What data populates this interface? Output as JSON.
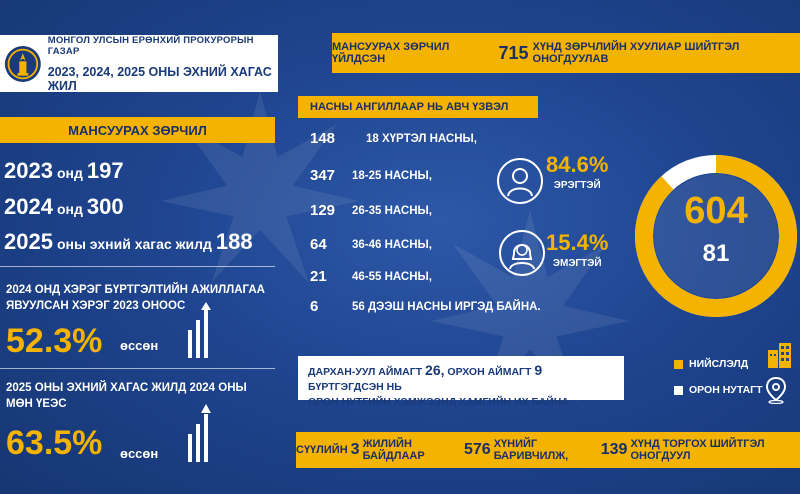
{
  "header": {
    "org": "МОНГОЛ УЛСЫН ЕРӨНХИЙ ПРОКУРОРЫН ГАЗАР",
    "period": "2023, 2024, 2025 ОНЫ ЭХНИЙ ХАГАС ЖИЛ"
  },
  "top_banner": {
    "before": "МАНСУУРАХ ЗӨРЧИЛ ҮЙЛДСЭН",
    "number": "715",
    "after": "ХҮНД ЗӨРЧЛИЙН ХУУЛИАР ШИЙТГЭЛ ОНОГДУУЛАВ"
  },
  "left": {
    "title": "МАНСУУРАХ ЗӨРЧИЛ",
    "years": [
      {
        "year": "2023",
        "mid": "онд",
        "value": "197"
      },
      {
        "year": "2024",
        "mid": "онд",
        "value": "300"
      },
      {
        "year": "2025",
        "mid": "оны эхний хагас жилд",
        "value": "188"
      }
    ],
    "stat1": {
      "line1": "2024 ОНД ХЭРЭГ БҮРТГЭЛТИЙН АЖИЛЛАГАА",
      "line2": "ЯВУУЛСАН ХЭРЭГ 2023 ОНООС",
      "pct": "52.3%",
      "word": "өссөн"
    },
    "stat2": {
      "line1": "2025 ОНЫ ЭХНИЙ ХАГАС ЖИЛД 2024 ОНЫ",
      "line2": "МӨН ҮЕЭС",
      "pct": "63.5%",
      "word": "өссөн"
    }
  },
  "ages": {
    "title": "НАСНЫ АНГИЛЛААР НЬ АВЧ ҮЗВЭЛ",
    "rows": [
      {
        "num": "148",
        "label": "18 ХҮРТЭЛ НАСНЫ,"
      },
      {
        "num": "347",
        "label": "18-25 НАСНЫ,"
      },
      {
        "num": "129",
        "label": "26-35 НАСНЫ,"
      },
      {
        "num": "64",
        "label": "36-46 НАСНЫ,"
      },
      {
        "num": "21",
        "label": "46-55 НАСНЫ,"
      },
      {
        "num": "6",
        "label": "56 ДЭЭШ НАСНЫ ИРГЭД БАЙНА."
      }
    ]
  },
  "gender": {
    "male": {
      "pct": "84.6%",
      "label": "ЭРЭГТЭЙ"
    },
    "female": {
      "pct": "15.4%",
      "label": "ЭМЭГТЭЙ"
    }
  },
  "donut": {
    "capital": "604",
    "rural": "81",
    "capital_value": 604,
    "rural_value": 81,
    "capital_color": "#f5b301",
    "rural_color": "#ffffff"
  },
  "info": {
    "p1": "ДАРХАН-УУЛ АЙМАГТ",
    "n1": "26,",
    "p2": "ОРХОН АЙМАГТ",
    "n2": "9",
    "p3": "БҮРТГЭГДСЭН НЬ",
    "line2": "ОРОН НУТГИЙН ХЭМЖЭЭНД ХАМГИЙН ИХ БАЙНА."
  },
  "legend": {
    "capital": "НИЙСЛЭЛД",
    "rural": "ОРОН НУТАГТ"
  },
  "bottom_banner": {
    "p1": "СҮҮЛИЙН",
    "n1": "3",
    "p2": "ЖИЛИЙН БАЙДЛААР",
    "n2": "576",
    "p3": "ХҮНИЙГ БАРИВЧИЛЖ,",
    "n3": "139",
    "p4": "ХҮНД ТОРГОХ ШИЙТГЭЛ ОНОГДУУЛ"
  },
  "icons": [
    "emblem-icon",
    "male-avatar-icon",
    "female-avatar-icon",
    "growth-bars-icon",
    "building-icon",
    "location-pin-icon"
  ]
}
